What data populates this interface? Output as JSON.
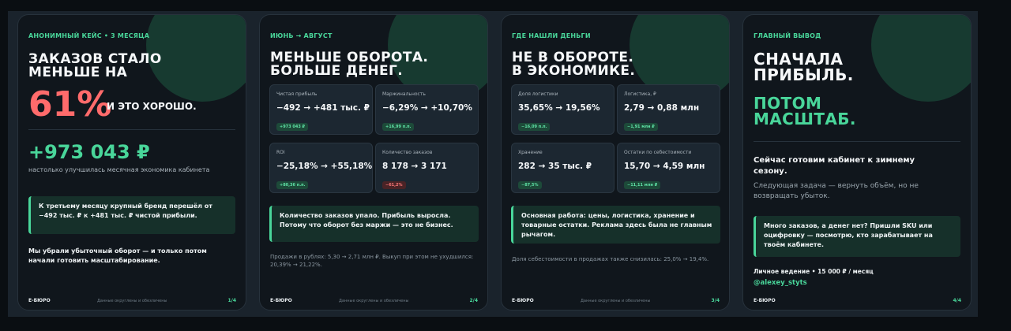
{
  "colors": {
    "accent_green": "#49d69a",
    "accent_red": "#ff6b6b",
    "card_bg": "#10161c",
    "blob": "#173a30"
  },
  "cards": [
    {
      "kicker": "АНОНИМНЫЙ КЕЙС • 3 МЕСЯЦА",
      "title_line1": "ЗАКАЗОВ СТАЛО",
      "title_line2": "МЕНЬШЕ НА",
      "big_percent": "61%",
      "percent_caption": "И ЭТО ХОРОШО.",
      "amount": "+973 043 ₽",
      "amount_caption": "настолько улучшилась месячная экономика кабинета",
      "note": "К третьему месяцу крупный бренд перешёл от −492 тыс. ₽ к +481 тыс. ₽ чистой прибыли.",
      "closing": "Мы убрали убыточный оборот — и только потом начали готовить масштабирование.",
      "footer_left": "Е-БЮРО",
      "footer_mid": "Данные округлены и обезличены",
      "footer_right": "1/4"
    },
    {
      "kicker": "ИЮНЬ → АВГУСТ",
      "title_line1": "МЕНЬШЕ ОБОРОТА.",
      "title_line2": "БОЛЬШЕ ДЕНЕГ.",
      "metrics": [
        {
          "label": "Чистая прибыль",
          "value": "−492 → +481 тыс. ₽",
          "badge": "+973 043 ₽",
          "tone": "green"
        },
        {
          "label": "Маржинальность",
          "value": "−6,29% → +10,70%",
          "badge": "+16,99 п.п.",
          "tone": "green"
        },
        {
          "label": "ROI",
          "value": "−25,18% → +55,18%",
          "badge": "+80,36 п.п.",
          "tone": "green"
        },
        {
          "label": "Количество заказов",
          "value": "8 178 → 3 171",
          "badge": "−61,2%",
          "tone": "red"
        }
      ],
      "note": "Количество заказов упало. Прибыль выросла. Потому что оборот без маржи — это не бизнес.",
      "bottom": "Продажи в рублях: 5,30 → 2,71 млн ₽. Выкуп при этом не ухудшился: 20,39% → 21,22%.",
      "footer_left": "Е-БЮРО",
      "footer_mid": "Данные округлены и обезличены",
      "footer_right": "2/4"
    },
    {
      "kicker": "ГДЕ НАШЛИ ДЕНЬГИ",
      "title_line1": "НЕ В ОБОРОТЕ.",
      "title_line2": "В ЭКОНОМИКЕ.",
      "metrics": [
        {
          "label": "Доля логистики",
          "value": "35,65% → 19,56%",
          "badge": "−16,09 п.п.",
          "tone": "green"
        },
        {
          "label": "Логистика, ₽",
          "value": "2,79 → 0,88 млн",
          "badge": "−1,91 млн ₽",
          "tone": "green"
        },
        {
          "label": "Хранение",
          "value": "282 → 35 тыс. ₽",
          "badge": "−87,5%",
          "tone": "green"
        },
        {
          "label": "Остатки по себестоимости",
          "value": "15,70 → 4,59 млн",
          "badge": "−11,11 млн ₽",
          "tone": "green"
        }
      ],
      "note": "Основная работа: цены, логистика, хранение и товарные остатки. Реклама здесь была не главным рычагом.",
      "bottom": "Доля себестоимости в продажах также снизилась: 25,0% → 19,4%.",
      "footer_left": "Е-БЮРО",
      "footer_mid": "Данные округлены и обезличены",
      "footer_right": "3/4"
    },
    {
      "kicker": "ГЛАВНЫЙ ВЫВОД",
      "title_line1": "СНАЧАЛА",
      "title_line2": "ПРИБЫЛЬ.",
      "green_line1": "ПОТОМ",
      "green_line2": "МАСШТАБ.",
      "subhead": "Сейчас готовим кабинет к зимнему сезону.",
      "subtext": "Следующая задача — вернуть объём, но не возвращать убыток.",
      "note": "Много заказов, а денег нет? Пришли SKU или оцифровку — посмотрю, кто зарабатывает на твоём кабинете.",
      "offer": "Личное ведение • 15 000 ₽ / месяц",
      "handle": "@alexey_styts",
      "footer_left": "Е-БЮРО",
      "footer_right": "4/4"
    }
  ]
}
